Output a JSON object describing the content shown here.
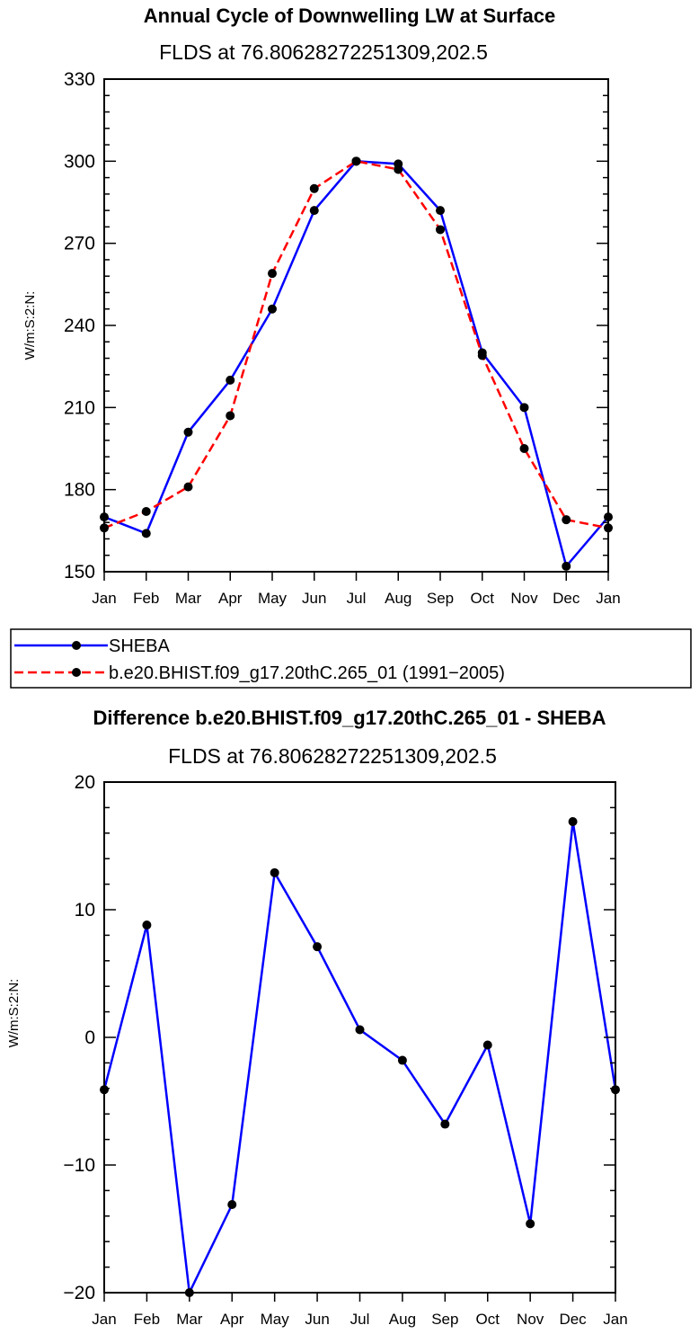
{
  "chart_data": [
    {
      "type": "line",
      "title": "Annual Cycle of Downwelling LW at Surface",
      "subtitle": "FLDS at 76.80628272251309,202.5",
      "ylabel": "W/m:S:2:N:",
      "xlabel": "",
      "ylim": [
        150,
        330
      ],
      "yticks": [
        150,
        180,
        210,
        240,
        270,
        300,
        330
      ],
      "ytick_labels": [
        "150",
        "180",
        "210",
        "240",
        "270",
        "300",
        "330"
      ],
      "categories": [
        "Jan",
        "Feb",
        "Mar",
        "Apr",
        "May",
        "Jun",
        "Jul",
        "Aug",
        "Sep",
        "Oct",
        "Nov",
        "Dec",
        "Jan"
      ],
      "series": [
        {
          "name": "SHEBA",
          "color": "#0000ff",
          "dash": "solid",
          "values": [
            170,
            164,
            201,
            220,
            246,
            282,
            300,
            299,
            282,
            230,
            210,
            152,
            170
          ]
        },
        {
          "name": "b.e20.BHIST.f09_g17.20thC.265_01 (1991−2005)",
          "color": "#ff0000",
          "dash": "dashed",
          "values": [
            166,
            172,
            181,
            207,
            259,
            290,
            300,
            297,
            275,
            229,
            195,
            169,
            166
          ]
        }
      ],
      "legend": "below"
    },
    {
      "type": "line",
      "title": "Difference b.e20.BHIST.f09_g17.20thC.265_01 - SHEBA",
      "subtitle": "FLDS at 76.80628272251309,202.5",
      "ylabel": "W/m:S:2:N:",
      "xlabel": "",
      "ylim": [
        -20,
        20
      ],
      "yticks": [
        -20,
        -10,
        0,
        10,
        20
      ],
      "ytick_labels": [
        "−20",
        "−10",
        "0",
        "10",
        "20"
      ],
      "categories": [
        "Jan",
        "Feb",
        "Mar",
        "Apr",
        "May",
        "Jun",
        "Jul",
        "Aug",
        "Sep",
        "Oct",
        "Nov",
        "Dec",
        "Jan"
      ],
      "series": [
        {
          "name": "Difference",
          "color": "#0000ff",
          "dash": "solid",
          "values": [
            -4.1,
            8.8,
            -20,
            -13.1,
            12.9,
            7.1,
            0.6,
            -1.8,
            -6.8,
            -0.6,
            -14.6,
            16.9,
            -4.1
          ]
        }
      ]
    }
  ]
}
